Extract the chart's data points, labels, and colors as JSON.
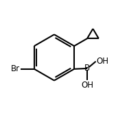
{
  "bg_color": "#ffffff",
  "line_color": "#000000",
  "line_width": 1.5,
  "text_color": "#000000",
  "font_size": 8.5,
  "br_label": "Br",
  "b_label": "B",
  "oh1_label": "OH",
  "oh2_label": "OH",
  "figsize": [
    2.05,
    1.68
  ],
  "dpi": 100
}
